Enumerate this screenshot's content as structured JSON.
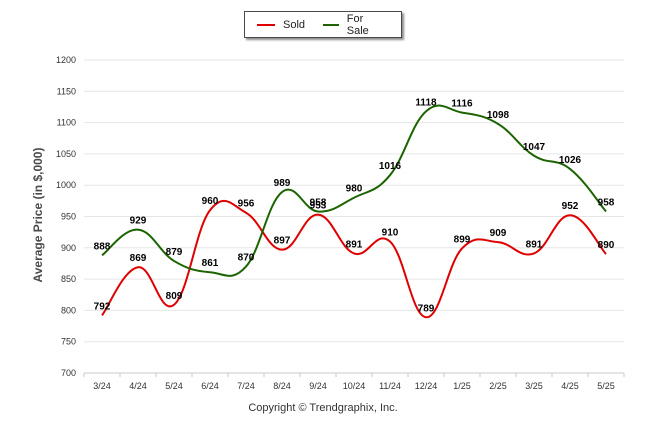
{
  "legend": {
    "items": [
      {
        "label": "Sold",
        "color": "#e00000"
      },
      {
        "label": "For Sale",
        "color": "#1b6400"
      }
    ]
  },
  "footer": "Copyright © Trendgraphix, Inc.",
  "chart_data": {
    "type": "line",
    "title": "",
    "xlabel": "",
    "ylabel": "Average Price (in $,000)",
    "ylim": [
      700,
      1200
    ],
    "yticks": [
      700,
      750,
      800,
      850,
      900,
      950,
      1000,
      1050,
      1100,
      1150,
      1200
    ],
    "grid": true,
    "legend_position": "top-center",
    "categories": [
      "3/24",
      "4/24",
      "5/24",
      "6/24",
      "7/24",
      "8/24",
      "9/24",
      "10/24",
      "11/24",
      "12/24",
      "1/25",
      "2/25",
      "3/25",
      "4/25",
      "5/25"
    ],
    "series": [
      {
        "name": "Sold",
        "color": "#e00000",
        "values": [
          792,
          869,
          809,
          960,
          956,
          897,
          953,
          891,
          910,
          789,
          899,
          909,
          891,
          952,
          890
        ]
      },
      {
        "name": "For Sale",
        "color": "#1b6400",
        "values": [
          888,
          929,
          879,
          861,
          870,
          989,
          958,
          980,
          1016,
          1118,
          1116,
          1098,
          1047,
          1026,
          958
        ]
      }
    ]
  }
}
